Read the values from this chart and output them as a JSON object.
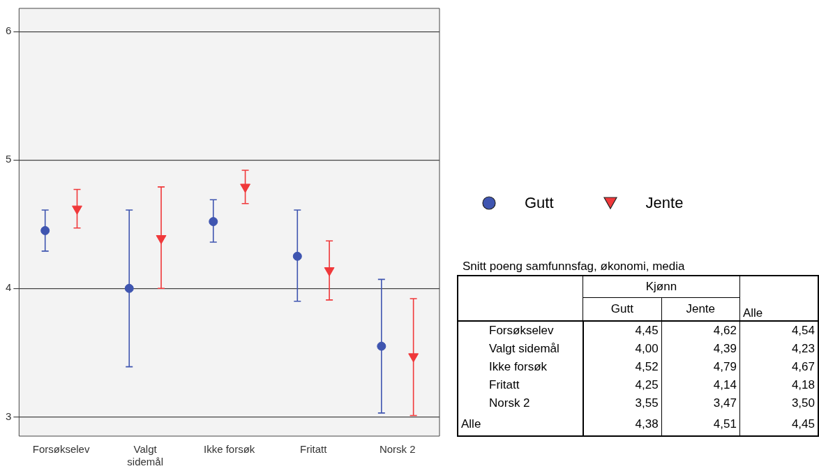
{
  "chart_data": [
    {
      "type": "scatter",
      "categories": [
        "Forsøkselev",
        "Valgt sidemål",
        "Ikke forsøk",
        "Fritatt",
        "Norsk 2"
      ],
      "series": [
        {
          "name": "Gutt",
          "color": "#3f55b0",
          "marker": "circle",
          "values": [
            4.45,
            4.0,
            4.52,
            4.25,
            3.55
          ],
          "errors": [
            [
              4.29,
              4.61
            ],
            [
              3.39,
              4.61
            ],
            [
              4.36,
              4.69
            ],
            [
              3.9,
              4.61
            ],
            [
              3.03,
              4.07
            ]
          ]
        },
        {
          "name": "Jente",
          "color": "#f0383a",
          "marker": "triangle",
          "values": [
            4.62,
            4.39,
            4.79,
            4.14,
            3.47
          ],
          "errors": [
            [
              4.47,
              4.77
            ],
            [
              4.0,
              4.79
            ],
            [
              4.66,
              4.92
            ],
            [
              3.91,
              4.37
            ],
            [
              3.01,
              3.92
            ]
          ]
        }
      ],
      "ylim": [
        2.85,
        6.18
      ],
      "yticks": [
        3,
        4,
        5,
        6
      ],
      "grid": "y",
      "legend": "right"
    },
    {
      "type": "other",
      "title": "Snitt poeng samfunnsfag, økonomi, media",
      "legend_title": "Kjønn",
      "categories": [
        "Forsøkselev",
        "Valgt sidemål",
        "Ikke forsøk",
        "Fritatt",
        "Norsk 2",
        "Alle"
      ],
      "series": [
        {
          "name": "Gutt",
          "values": [
            4.45,
            4.0,
            4.52,
            4.25,
            3.55,
            4.38
          ],
          "value_labels": [
            "4,45",
            "4,00",
            "4,52",
            "4,25",
            "3,55",
            "4,38"
          ]
        },
        {
          "name": "Jente",
          "values": [
            4.62,
            4.39,
            4.79,
            4.14,
            3.47,
            4.51
          ],
          "value_labels": [
            "4,62",
            "4,39",
            "4,79",
            "4,14",
            "3,47",
            "4,51"
          ]
        },
        {
          "name": "Alle",
          "values": [
            4.54,
            4.23,
            4.67,
            4.18,
            3.5,
            4.45
          ],
          "value_labels": [
            "4,54",
            "4,23",
            "4,67",
            "4,18",
            "3,50",
            "4,45"
          ]
        }
      ]
    }
  ]
}
